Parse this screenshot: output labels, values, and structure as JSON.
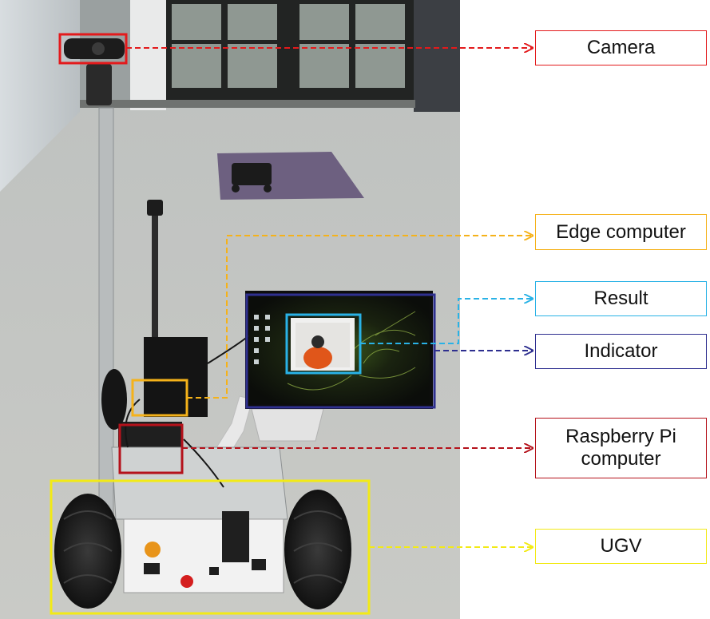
{
  "components": [
    {
      "key": "camera",
      "label": "Camera",
      "color": "#e31a1c"
    },
    {
      "key": "edge",
      "label": "Edge computer",
      "color": "#f5b21a"
    },
    {
      "key": "result",
      "label": "Result",
      "color": "#29b2e6"
    },
    {
      "key": "indicator",
      "label": "Indicator",
      "color": "#2e2f8f"
    },
    {
      "key": "rpi",
      "label": "Raspberry Pi computer",
      "label_line1": "Raspberry Pi",
      "label_line2": "computer",
      "color": "#b5121b"
    },
    {
      "key": "ugv",
      "label": "UGV",
      "color": "#f2ea16"
    }
  ]
}
